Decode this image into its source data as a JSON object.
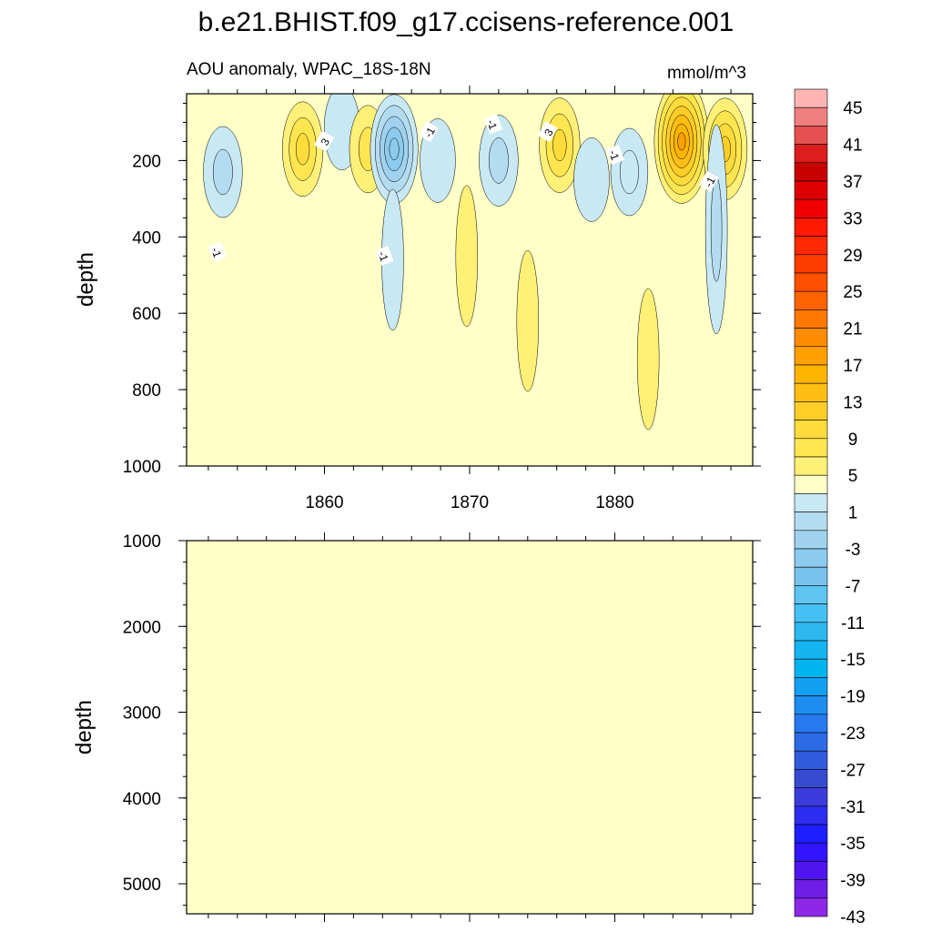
{
  "title": "b.e21.BHIST.f09_g17.ccisens-reference.001",
  "colors": {
    "background_fill": "#ffffc8",
    "contour_line": "#000000"
  },
  "chart_data": [
    {
      "type": "contour",
      "left_label": "AOU anomaly, WPAC_18S-18N",
      "right_label": "mmol/m^3",
      "ylabel": "depth",
      "xlim": [
        1850.5,
        1889.5
      ],
      "ylim": [
        1000,
        25
      ],
      "x_ticks": [
        1860,
        1870,
        1880
      ],
      "y_ticks": [
        200,
        400,
        600,
        800,
        1000
      ],
      "contour_interval": 2,
      "contour_line_labels": [
        {
          "text": "-1",
          "x": 1852.6,
          "depth": 440
        },
        {
          "text": "3",
          "x": 1860.0,
          "depth": 150
        },
        {
          "text": "-1",
          "x": 1864.1,
          "depth": 450
        },
        {
          "text": "-1",
          "x": 1867.2,
          "depth": 125
        },
        {
          "text": "-1",
          "x": 1871.6,
          "depth": 105
        },
        {
          "text": "3",
          "x": 1875.4,
          "depth": 125
        },
        {
          "text": "-1",
          "x": 1880.0,
          "depth": 185
        },
        {
          "text": "-1",
          "x": 1886.5,
          "depth": 255
        }
      ],
      "features": [
        {
          "x": 1853.0,
          "depth": 230,
          "value": -4
        },
        {
          "x": 1858.5,
          "depth": 170,
          "value": 5
        },
        {
          "x": 1861.2,
          "depth": 115,
          "value": -2
        },
        {
          "x": 1863.0,
          "depth": 170,
          "value": 3
        },
        {
          "x": 1864.8,
          "depth": 170,
          "value": -9
        },
        {
          "x": 1864.7,
          "depth": 460,
          "value": -1.5
        },
        {
          "x": 1867.8,
          "depth": 200,
          "value": -2
        },
        {
          "x": 1869.8,
          "depth": 450,
          "value": 1.5
        },
        {
          "x": 1872.0,
          "depth": 200,
          "value": -4
        },
        {
          "x": 1874.0,
          "depth": 620,
          "value": 1.5
        },
        {
          "x": 1876.2,
          "depth": 160,
          "value": 5
        },
        {
          "x": 1878.4,
          "depth": 250,
          "value": -2
        },
        {
          "x": 1881.0,
          "depth": 230,
          "value": -3
        },
        {
          "x": 1884.6,
          "depth": 150,
          "value": 13
        },
        {
          "x": 1882.3,
          "depth": 720,
          "value": 1.5
        },
        {
          "x": 1887.6,
          "depth": 170,
          "value": 7
        },
        {
          "x": 1887.0,
          "depth": 380,
          "value": -4
        }
      ]
    },
    {
      "type": "contour",
      "ylabel": "depth",
      "xlim": [
        1850.5,
        1889.5
      ],
      "ylim": [
        5350,
        1000
      ],
      "x_ticks": [
        1860,
        1870,
        1880
      ],
      "y_ticks": [
        1000,
        2000,
        3000,
        4000,
        5000
      ],
      "fill_value": 0
    }
  ],
  "colorbar": {
    "labels": [
      "45",
      "41",
      "37",
      "33",
      "29",
      "25",
      "21",
      "17",
      "13",
      "9",
      "5",
      "1",
      "-3",
      "-7",
      "-11",
      "-15",
      "-19",
      "-23",
      "-27",
      "-31",
      "-35",
      "-39",
      "-43"
    ],
    "colors": [
      "#ffb4b4",
      "#f08080",
      "#e65050",
      "#dc1e1e",
      "#c80000",
      "#de0000",
      "#f00000",
      "#ff1a00",
      "#ff2a00",
      "#ff3c00",
      "#ff5000",
      "#ff6400",
      "#ff7800",
      "#ff8c00",
      "#ffa000",
      "#ffb400",
      "#ffbe14",
      "#ffcd28",
      "#ffdc3c",
      "#ffe650",
      "#fff078",
      "#ffffc8",
      "#c8e8f4",
      "#b4dcf0",
      "#a0d2ee",
      "#8ccaee",
      "#78c2ee",
      "#5ec4f2",
      "#46c0f2",
      "#2eb8f0",
      "#14b4f0",
      "#00b4f0",
      "#14a0f0",
      "#1e8cf0",
      "#2878f0",
      "#2d6ae6",
      "#325adc",
      "#374bd2",
      "#3c3cdc",
      "#2d2df0",
      "#1e1eff",
      "#3214ff",
      "#5014f0",
      "#6e1ee6",
      "#8c28e6"
    ]
  }
}
